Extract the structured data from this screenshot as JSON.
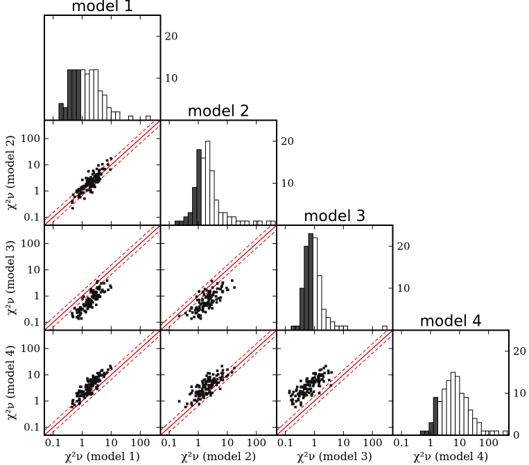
{
  "chart_data": {
    "type": "corner-plot",
    "models": [
      "model 1",
      "model 2",
      "model 3",
      "model 4"
    ],
    "xlabels": [
      "χ²ν (model 1)",
      "χ²ν (model 2)",
      "χ²ν (model 3)",
      "χ²ν (model 4)"
    ],
    "ylabels": [
      "χ²ν (model 2)",
      "χ²ν (model 3)",
      "χ²ν (model 4)"
    ],
    "log_axis": {
      "range": [
        0.05,
        500
      ],
      "ticks": [
        0.1,
        1,
        10,
        100
      ],
      "tick_labels": [
        "0.1",
        "1",
        "10",
        "100"
      ]
    },
    "hist_count_axis": {
      "range": [
        0,
        25
      ],
      "ticks": [
        10,
        20
      ],
      "tick_labels": [
        "10",
        "20"
      ],
      "corner_tick_labels": [
        "0",
        "10",
        "20"
      ]
    },
    "histograms": [
      {
        "model": "model 1",
        "bin_edges_log10": [
          -0.8,
          -0.65,
          -0.5,
          -0.35,
          -0.2,
          -0.05,
          0.1,
          0.25,
          0.4,
          0.55,
          0.7,
          0.85,
          1.0,
          1.15,
          1.3,
          1.45,
          1.6,
          1.75,
          1.9,
          2.05,
          2.2,
          2.35,
          2.5,
          2.65
        ],
        "counts": [
          4,
          3,
          12,
          12,
          12,
          12,
          11,
          12,
          12,
          7,
          6,
          3,
          2,
          2,
          0,
          0,
          1,
          0,
          0,
          0,
          1,
          0,
          0
        ],
        "filled_bins": 5
      },
      {
        "model": "model 2",
        "bin_edges_log10": [
          -0.8,
          -0.65,
          -0.5,
          -0.35,
          -0.2,
          -0.05,
          0.1,
          0.25,
          0.4,
          0.55,
          0.7,
          0.85,
          1.0,
          1.15,
          1.3,
          1.45,
          1.6,
          1.75,
          1.9,
          2.05,
          2.2,
          2.35,
          2.5,
          2.65
        ],
        "counts": [
          1,
          1,
          2,
          3,
          9,
          18,
          16,
          20,
          13,
          6,
          3,
          3,
          2,
          2,
          1,
          1,
          1,
          0,
          1,
          1,
          0,
          1,
          1
        ],
        "filled_bins": 6
      },
      {
        "model": "model 3",
        "bin_edges_log10": [
          -0.8,
          -0.65,
          -0.5,
          -0.35,
          -0.2,
          -0.05,
          0.1,
          0.25,
          0.4,
          0.55,
          0.7,
          0.85,
          1.0,
          1.15,
          1.3,
          1.45,
          1.6,
          1.75,
          1.9,
          2.05,
          2.2,
          2.35,
          2.5,
          2.65
        ],
        "counts": [
          1,
          1,
          10,
          20,
          23,
          22,
          13,
          5,
          3,
          2,
          1,
          1,
          1,
          0,
          0,
          0,
          0,
          0,
          0,
          0,
          0,
          1,
          0
        ],
        "filled_bins": 5
      },
      {
        "model": "model 4",
        "bin_edges_log10": [
          -1.4,
          -1.25,
          -1.1,
          -0.95,
          -0.8,
          -0.65,
          -0.5,
          -0.35,
          -0.2,
          -0.05,
          0.1,
          0.25,
          0.4,
          0.55,
          0.7,
          0.85,
          1.0,
          1.15,
          1.3,
          1.45,
          1.6,
          1.75,
          1.9,
          2.05,
          2.2,
          2.35,
          2.5,
          2.65
        ],
        "counts": [
          0,
          0,
          0,
          0,
          0,
          0,
          0,
          1,
          1,
          3,
          9,
          8,
          11,
          13,
          15,
          14,
          10,
          9,
          6,
          4,
          3,
          1,
          1,
          1,
          1,
          0,
          1
        ],
        "filled_bins": 11
      }
    ],
    "scatter_pairs": [
      {
        "x_model": "model 1",
        "y_model": "model 2",
        "row": 1,
        "col": 0,
        "relation": "y ≈ x, scatter ±0.3 dex"
      },
      {
        "x_model": "model 1",
        "y_model": "model 3",
        "row": 2,
        "col": 0,
        "relation": "y ≈ 0.3 x, shifted below 1:1"
      },
      {
        "x_model": "model 2",
        "y_model": "model 3",
        "row": 2,
        "col": 1,
        "relation": "y ≈ 0.35 x, below 1:1"
      },
      {
        "x_model": "model 1",
        "y_model": "model 4",
        "row": 3,
        "col": 0,
        "relation": "y ≈ 1.5 x, above 1:1"
      },
      {
        "x_model": "model 2",
        "y_model": "model 4",
        "row": 3,
        "col": 1,
        "relation": "y ≈ 1.8 x, above 1:1"
      },
      {
        "x_model": "model 3",
        "y_model": "model 4",
        "row": 3,
        "col": 2,
        "relation": "y ≈ 4 x, well above 1:1"
      }
    ],
    "reference_lines": {
      "one_to_one": "solid red, y = x",
      "band": "dashed red, y = x·1.5 and y = x/1.5"
    }
  }
}
